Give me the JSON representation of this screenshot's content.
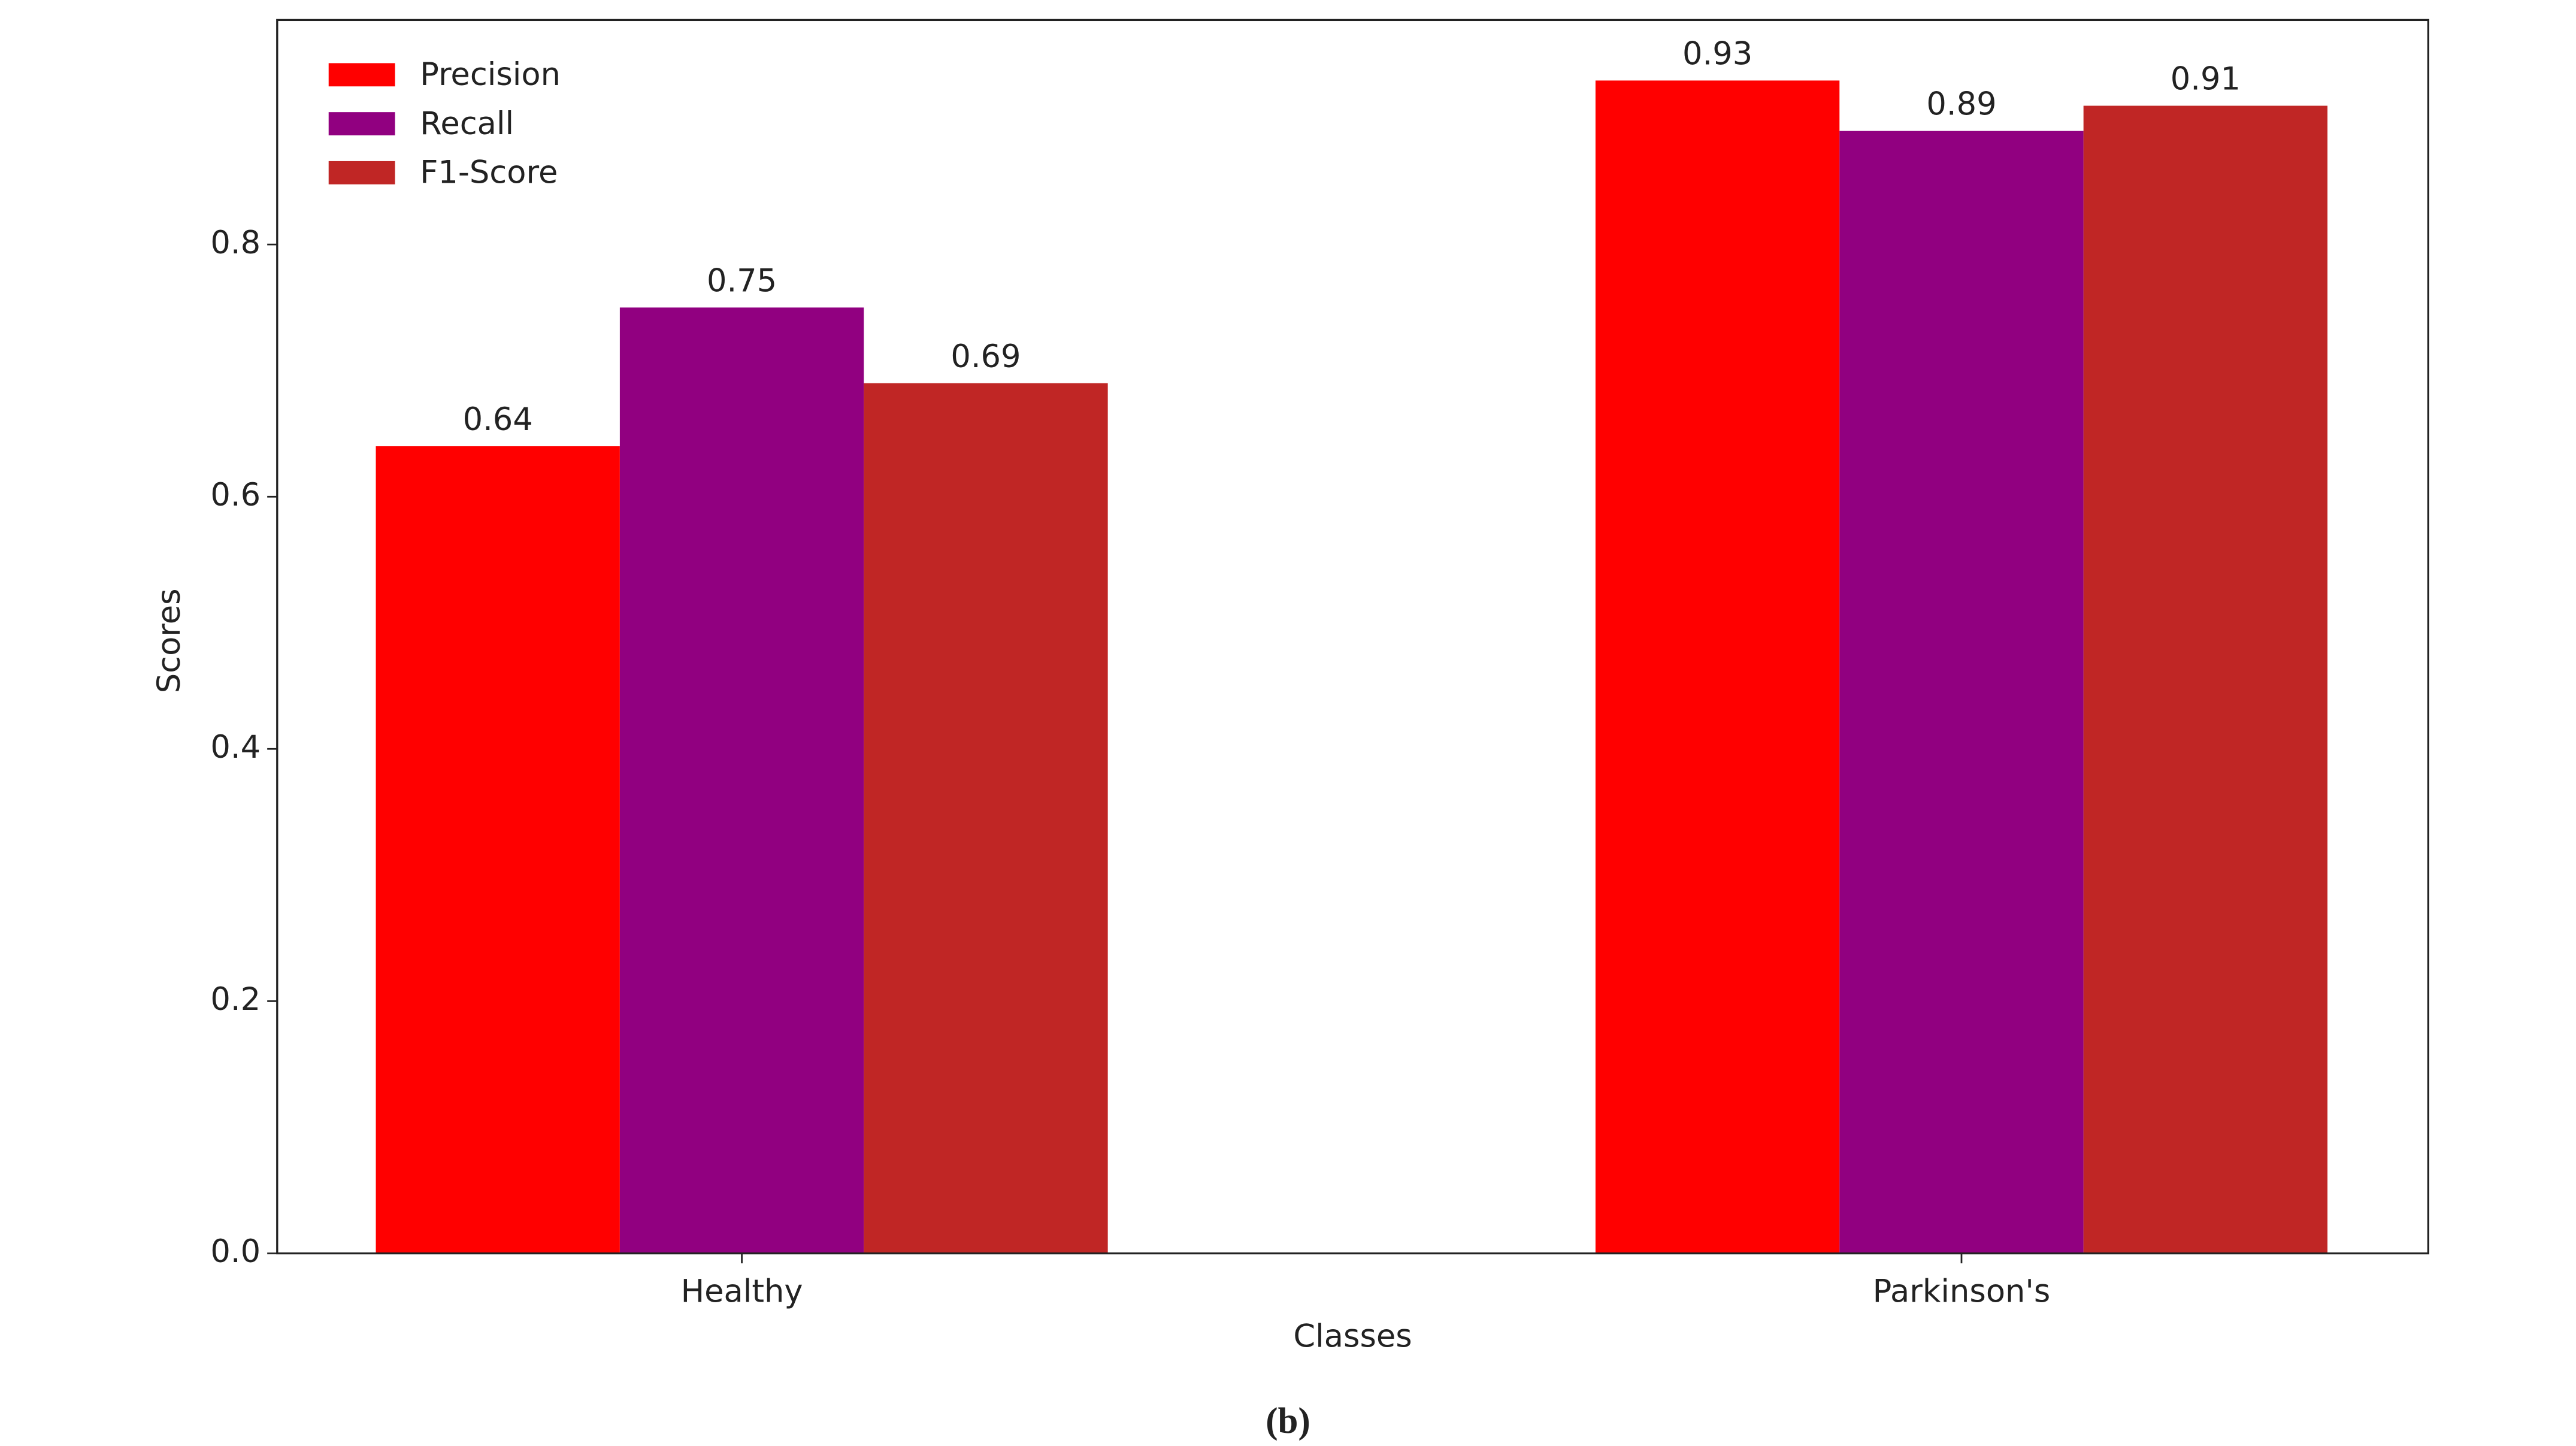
{
  "chart_data": {
    "type": "bar",
    "categories": [
      "Healthy",
      "Parkinson's"
    ],
    "series": [
      {
        "name": "Precision",
        "color": "#ff0000",
        "values": [
          0.64,
          0.93
        ]
      },
      {
        "name": "Recall",
        "color": "#910080",
        "values": [
          0.75,
          0.89
        ]
      },
      {
        "name": "F1-Score",
        "color": "#c02625",
        "values": [
          0.69,
          0.91
        ]
      }
    ],
    "ylim": [
      0,
      0.978
    ],
    "yticks": [
      {
        "value": 0,
        "label": "0.0"
      },
      0.2,
      0.4,
      0.6,
      0.8
    ],
    "xlabel": "Classes",
    "ylabel": "Scores",
    "legend": "upper-left",
    "caption": "(b)"
  }
}
